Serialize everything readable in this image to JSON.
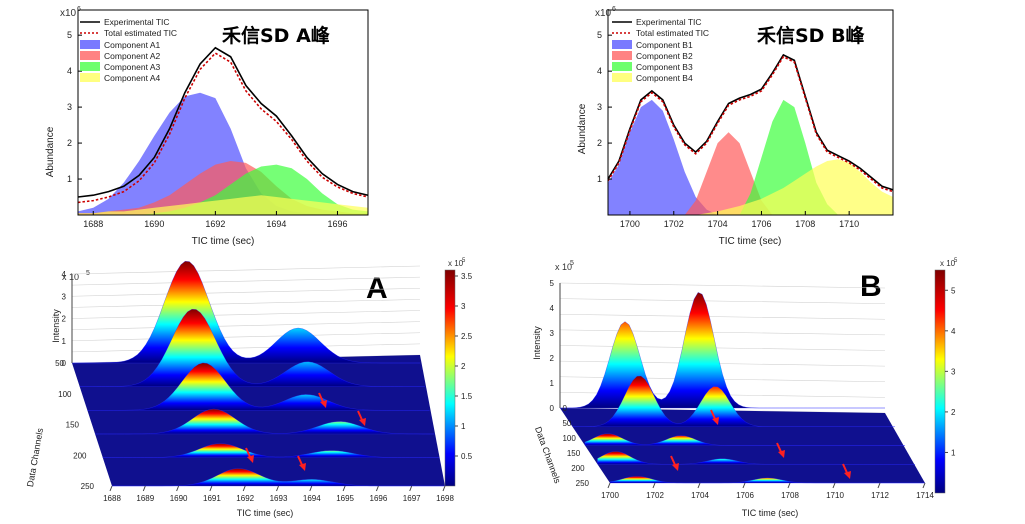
{
  "chart_data": [
    {
      "panel": "top-left",
      "type": "area",
      "title": "禾信SD  A峰",
      "xlabel": "TIC time (sec)",
      "ylabel": "Abundance",
      "y_exponent_base": "x10",
      "y_exponent_power": "6",
      "xlim": [
        1687.5,
        1697
      ],
      "ylim": [
        0,
        5.7
      ],
      "xticks": [
        1688,
        1690,
        1692,
        1694,
        1696
      ],
      "yticks": [
        1,
        2,
        3,
        4,
        5
      ],
      "legend": [
        "Experimental TIC",
        "Total estimated TIC",
        "Component A1",
        "Component A2",
        "Component A3",
        "Component A4"
      ],
      "experimental": {
        "name": "Experimental TIC",
        "color": "#000000",
        "x": [
          1687.5,
          1688,
          1688.5,
          1689,
          1689.5,
          1690,
          1690.5,
          1691,
          1691.5,
          1692,
          1692.5,
          1693,
          1693.5,
          1694,
          1694.5,
          1695,
          1695.5,
          1696,
          1696.5,
          1697
        ],
        "y": [
          0.5,
          0.55,
          0.65,
          0.8,
          1.1,
          1.6,
          2.4,
          3.4,
          4.2,
          4.65,
          4.4,
          3.6,
          3.1,
          2.75,
          2.2,
          1.6,
          1.15,
          0.85,
          0.65,
          0.55
        ]
      },
      "estimated": {
        "name": "Total estimated TIC",
        "color": "#cc0000",
        "x": [
          1687.5,
          1688,
          1688.5,
          1689,
          1689.5,
          1690,
          1690.5,
          1691,
          1691.5,
          1692,
          1692.5,
          1693,
          1693.5,
          1694,
          1694.5,
          1695,
          1695.5,
          1696,
          1696.5,
          1697
        ],
        "y": [
          0.35,
          0.4,
          0.5,
          0.65,
          0.95,
          1.45,
          2.25,
          3.25,
          4.05,
          4.5,
          4.25,
          3.45,
          2.95,
          2.6,
          2.1,
          1.5,
          1.05,
          0.78,
          0.6,
          0.5
        ]
      },
      "components": [
        {
          "name": "Component A1",
          "color": "#4d4dff",
          "x": [
            1687.5,
            1688,
            1688.5,
            1689,
            1689.5,
            1690,
            1690.5,
            1691,
            1691.5,
            1692,
            1692.5,
            1693,
            1693.5,
            1694,
            1694.5,
            1695,
            1695.5,
            1696,
            1696.5,
            1697
          ],
          "y": [
            0.1,
            0.2,
            0.45,
            0.9,
            1.5,
            2.2,
            2.85,
            3.3,
            3.4,
            3.25,
            2.4,
            1.3,
            0.6,
            0.25,
            0.1,
            0.05,
            0,
            0,
            0,
            0
          ]
        },
        {
          "name": "Component A2",
          "color": "#ff5a5a",
          "x": [
            1687.5,
            1688,
            1688.5,
            1689,
            1689.5,
            1690,
            1690.5,
            1691,
            1691.5,
            1692,
            1692.5,
            1693,
            1693.5,
            1694,
            1694.5,
            1695,
            1695.5,
            1696,
            1696.5,
            1697
          ],
          "y": [
            0.05,
            0.05,
            0.1,
            0.15,
            0.2,
            0.35,
            0.55,
            0.85,
            1.15,
            1.4,
            1.5,
            1.45,
            1.2,
            0.8,
            0.45,
            0.25,
            0.15,
            0.1,
            0.05,
            0.05
          ]
        },
        {
          "name": "Component A3",
          "color": "#3cff3c",
          "x": [
            1687.5,
            1688,
            1688.5,
            1689,
            1689.5,
            1690,
            1690.5,
            1691,
            1691.5,
            1692,
            1692.5,
            1693,
            1693.5,
            1694,
            1694.5,
            1695,
            1695.5,
            1696,
            1696.5,
            1697
          ],
          "y": [
            0,
            0,
            0,
            0,
            0,
            0.05,
            0.1,
            0.2,
            0.35,
            0.55,
            0.85,
            1.15,
            1.35,
            1.4,
            1.3,
            1.0,
            0.6,
            0.3,
            0.15,
            0.1
          ]
        },
        {
          "name": "Component A4",
          "color": "#ffff55",
          "x": [
            1687.5,
            1688,
            1688.5,
            1689,
            1689.5,
            1690,
            1690.5,
            1691,
            1691.5,
            1692,
            1692.5,
            1693,
            1693.5,
            1694,
            1694.5,
            1695,
            1695.5,
            1696,
            1696.5,
            1697
          ],
          "y": [
            0.05,
            0.05,
            0.1,
            0.1,
            0.15,
            0.2,
            0.25,
            0.3,
            0.35,
            0.4,
            0.45,
            0.5,
            0.55,
            0.5,
            0.45,
            0.4,
            0.35,
            0.3,
            0.25,
            0.2
          ]
        }
      ]
    },
    {
      "panel": "top-right",
      "type": "area",
      "title": "禾信SD  B峰",
      "xlabel": "TIC time (sec)",
      "ylabel": "Abundance",
      "y_exponent_base": "x10",
      "y_exponent_power": "6",
      "xlim": [
        1699,
        1712
      ],
      "ylim": [
        0,
        5.7
      ],
      "xticks": [
        1700,
        1702,
        1704,
        1706,
        1708,
        1710
      ],
      "yticks": [
        1,
        2,
        3,
        4,
        5
      ],
      "legend": [
        "Experimental TIC",
        "Total estimated TIC",
        "Component B1",
        "Component B2",
        "Component B3",
        "Component B4"
      ],
      "experimental": {
        "name": "Experimental TIC",
        "color": "#000000",
        "x": [
          1699,
          1699.5,
          1700,
          1700.5,
          1701,
          1701.5,
          1702,
          1702.5,
          1703,
          1703.5,
          1704,
          1704.5,
          1705,
          1705.5,
          1706,
          1706.5,
          1707,
          1707.5,
          1708,
          1708.5,
          1709,
          1709.5,
          1710,
          1710.5,
          1711,
          1711.5,
          1712
        ],
        "y": [
          1.0,
          1.5,
          2.4,
          3.2,
          3.45,
          3.2,
          2.5,
          2.0,
          1.75,
          2.05,
          2.6,
          3.1,
          3.25,
          3.35,
          3.5,
          3.95,
          4.45,
          4.3,
          3.3,
          2.3,
          1.8,
          1.65,
          1.5,
          1.3,
          1.05,
          0.8,
          0.7
        ]
      },
      "estimated": {
        "name": "Total estimated TIC",
        "color": "#cc0000",
        "x": [
          1699,
          1699.5,
          1700,
          1700.5,
          1701,
          1701.5,
          1702,
          1702.5,
          1703,
          1703.5,
          1704,
          1704.5,
          1705,
          1705.5,
          1706,
          1706.5,
          1707,
          1707.5,
          1708,
          1708.5,
          1709,
          1709.5,
          1710,
          1710.5,
          1711,
          1711.5,
          1712
        ],
        "y": [
          0.95,
          1.45,
          2.35,
          3.15,
          3.4,
          3.15,
          2.45,
          1.95,
          1.7,
          2.0,
          2.55,
          3.05,
          3.2,
          3.3,
          3.45,
          3.9,
          4.4,
          4.25,
          3.25,
          2.25,
          1.75,
          1.6,
          1.45,
          1.25,
          1.0,
          0.75,
          0.65
        ]
      },
      "components": [
        {
          "name": "Component B1",
          "color": "#4d4dff",
          "x": [
            1699,
            1699.5,
            1700,
            1700.5,
            1701,
            1701.5,
            1702,
            1702.5,
            1703,
            1703.5,
            1704
          ],
          "y": [
            0.9,
            1.4,
            2.3,
            3.0,
            3.2,
            2.9,
            2.1,
            1.2,
            0.5,
            0.15,
            0
          ]
        },
        {
          "name": "Component B2",
          "color": "#ff5a5a",
          "x": [
            1702.5,
            1703,
            1703.5,
            1704,
            1704.5,
            1705,
            1705.5,
            1706,
            1706.5
          ],
          "y": [
            0,
            0.4,
            1.2,
            2.0,
            2.3,
            2.0,
            1.2,
            0.4,
            0
          ]
        },
        {
          "name": "Component B3",
          "color": "#3cff3c",
          "x": [
            1705,
            1705.5,
            1706,
            1706.5,
            1707,
            1707.5,
            1708,
            1708.5,
            1709,
            1709.5
          ],
          "y": [
            0,
            0.6,
            1.6,
            2.6,
            3.2,
            3.0,
            2.0,
            0.9,
            0.3,
            0
          ]
        },
        {
          "name": "Component B4",
          "color": "#ffff55",
          "x": [
            1703,
            1704,
            1705,
            1706,
            1707,
            1707.5,
            1708,
            1708.5,
            1709,
            1709.5,
            1710,
            1710.5,
            1711,
            1711.5,
            1712
          ],
          "y": [
            0,
            0.1,
            0.25,
            0.45,
            0.75,
            0.95,
            1.15,
            1.35,
            1.5,
            1.55,
            1.45,
            1.2,
            0.9,
            0.65,
            0.5
          ]
        }
      ]
    },
    {
      "panel": "bottom-left",
      "type": "surface3d",
      "title": "A",
      "xlabel": "TIC time (sec)",
      "ylabel": "Data Channels",
      "zlabel": "Intensity",
      "z_exponent_base": "x 10",
      "z_exponent_power": "5",
      "xticks": [
        "1688",
        "1689",
        "1690",
        "1691",
        "1692",
        "1693",
        "1694",
        "1695",
        "1696",
        "1697",
        "1698"
      ],
      "yticks": [
        "50",
        "100",
        "150",
        "200",
        "250"
      ],
      "zticks": [
        "0",
        "1",
        "2",
        "3",
        "4"
      ],
      "colorbar": {
        "ticks": [
          "0.5",
          "1",
          "1.5",
          "2",
          "2.5",
          "3",
          "3.5"
        ],
        "exponent_base": "x 10",
        "exponent_power": "5",
        "max": 3.6
      },
      "ridges": [
        {
          "channel": 50,
          "peak_time": 1691.3,
          "peak": 3.5,
          "secondary_time": 1694.5,
          "secondary": 1.2
        },
        {
          "channel": 75,
          "peak_time": 1691.3,
          "peak": 2.8,
          "secondary_time": 1694.6,
          "secondary": 0.9
        },
        {
          "channel": 100,
          "peak_time": 1691.4,
          "peak": 1.8,
          "secondary_time": 1694.4,
          "secondary": 0.6
        },
        {
          "channel": 125,
          "peak_time": 1691.5,
          "peak": 1.0,
          "secondary_time": 1695.2,
          "secondary": 0.5
        },
        {
          "channel": 150,
          "peak_time": 1691.5,
          "peak": 0.6,
          "secondary_time": 1694.8,
          "secondary": 0.3
        },
        {
          "channel": 180,
          "peak_time": 1691.8,
          "peak": 0.8,
          "secondary_time": 1694.0,
          "secondary": 0.3
        }
      ],
      "arrows": 4,
      "colormap": [
        "#00007f",
        "#0000ff",
        "#00ffff",
        "#ffff00",
        "#ff0000",
        "#7f0000"
      ]
    },
    {
      "panel": "bottom-right",
      "type": "surface3d",
      "title": "B",
      "xlabel": "TIC time (sec)",
      "ylabel": "Data Channels",
      "zlabel": "Intensity",
      "z_exponent_base": "x 10",
      "z_exponent_power": "5",
      "xticks": [
        "1700",
        "1702",
        "1704",
        "1706",
        "1708",
        "1710",
        "1712",
        "1714"
      ],
      "yticks": [
        "0",
        "50",
        "100",
        "150",
        "200",
        "250"
      ],
      "zticks": [
        "0",
        "1",
        "2",
        "3",
        "4",
        "5"
      ],
      "colorbar": {
        "ticks": [
          "1",
          "2",
          "3",
          "4",
          "5"
        ],
        "exponent_base": "x 10",
        "exponent_power": "5",
        "max": 5.5
      },
      "ridges": [
        {
          "channel": 30,
          "peak_time": 1702.8,
          "peak": 3.8,
          "secondary_time": 1706.0,
          "secondary": 5.1
        },
        {
          "channel": 60,
          "peak_time": 1702.9,
          "peak": 2.4,
          "secondary_time": 1706.2,
          "secondary": 1.9
        },
        {
          "channel": 90,
          "peak_time": 1701.0,
          "peak": 0.6,
          "secondary_time": 1704.2,
          "secondary": 0.5
        },
        {
          "channel": 120,
          "peak_time": 1700.8,
          "peak": 0.7,
          "secondary_time": 1705.5,
          "secondary": 0.3
        },
        {
          "channel": 150,
          "peak_time": 1701.2,
          "peak": 0.4,
          "secondary_time": 1707.0,
          "secondary": 0.3
        }
      ],
      "arrows": 4,
      "colormap": [
        "#00007f",
        "#0000ff",
        "#00ffff",
        "#ffff00",
        "#ff0000",
        "#7f0000"
      ]
    }
  ]
}
